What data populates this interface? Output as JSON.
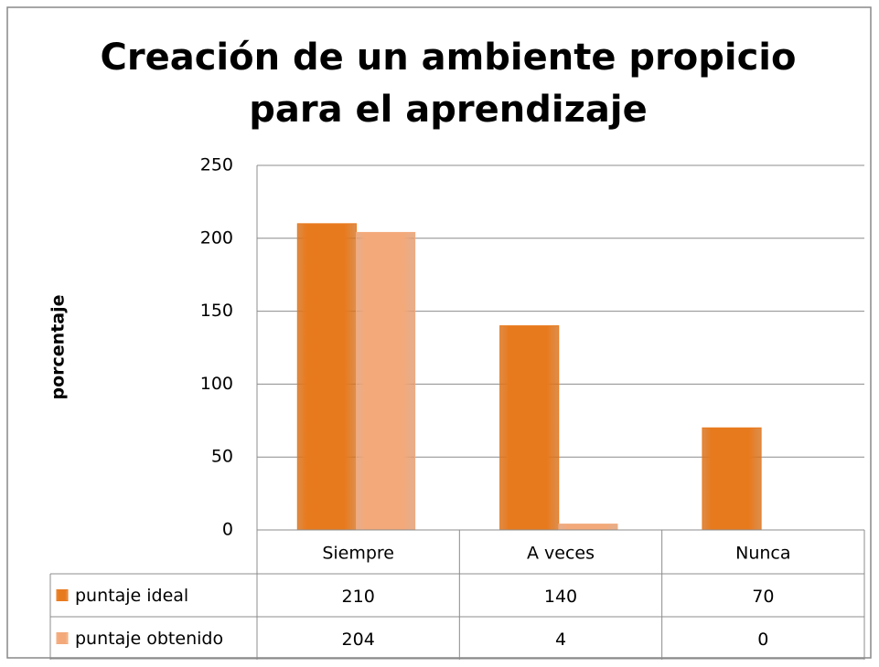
{
  "chart_data": {
    "type": "bar",
    "title": [
      "Creación de un ambiente propicio",
      "para el aprendizaje"
    ],
    "y_label": "porcentaje",
    "categories": [
      "Siempre",
      "A veces",
      "Nunca"
    ],
    "series": [
      {
        "name": "puntaje ideal",
        "color": "#e87a1e",
        "values": [
          210,
          140,
          70
        ]
      },
      {
        "name": "puntaje obtenido",
        "color": "#f3a97a",
        "values": [
          204,
          4,
          0
        ]
      }
    ],
    "ylim": [
      0,
      250
    ],
    "yticks": [
      0,
      50,
      100,
      150,
      200,
      250
    ],
    "grid": true,
    "data_table": true
  }
}
